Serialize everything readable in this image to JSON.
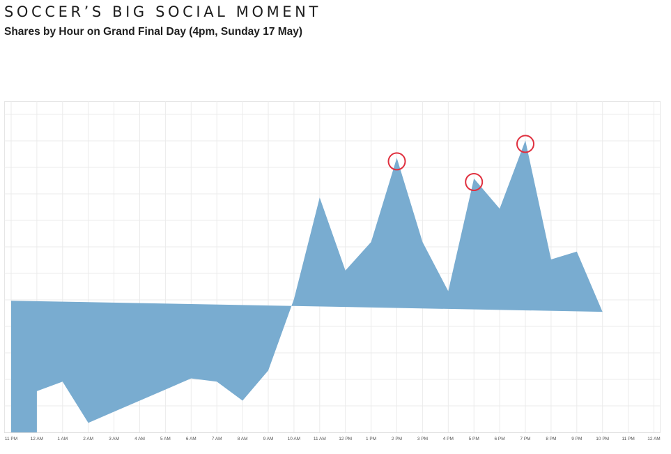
{
  "header": {
    "title": "SOCCER’S BIG SOCIAL MOMENT",
    "subtitle": "Shares by Hour on Grand Final Day (4pm, Sunday 17 May)"
  },
  "chart_data": {
    "type": "area",
    "title": "SOCCER’S BIG SOCIAL MOMENT",
    "subtitle": "Shares by Hour on Grand Final Day (4pm, Sunday 17 May)",
    "tick_labels": [
      "11 PM",
      "12 AM",
      "1 AM",
      "2 AM",
      "3 AM",
      "4 AM",
      "5 AM",
      "6 AM",
      "7 AM",
      "8 AM",
      "9 AM",
      "10 AM",
      "11 AM",
      "12 PM",
      "1 PM",
      "2 PM",
      "3 PM",
      "4 PM",
      "5 PM",
      "6 PM",
      "7 PM",
      "8 PM",
      "9 PM",
      "10 PM",
      "11 PM",
      "12 AM"
    ],
    "x": [
      "12 AM",
      "1 AM",
      "2 AM",
      "3 AM",
      "4 AM",
      "5 AM",
      "6 AM",
      "7 AM",
      "8 AM",
      "9 AM",
      "10 AM",
      "11 AM",
      "12 PM",
      "1 PM",
      "2 PM",
      "3 PM",
      "4 PM",
      "5 PM",
      "6 PM",
      "7 PM",
      "8 PM",
      "9 PM",
      "10 PM",
      "11 PM"
    ],
    "series": [
      {
        "values": [
          13,
          16,
          3,
          6.5,
          10,
          13.5,
          17,
          16,
          10,
          19.5,
          42,
          74,
          51,
          60,
          86.5,
          60,
          44.5,
          80,
          70.5,
          92,
          54.5,
          57,
          38,
          41.5
        ]
      }
    ],
    "highlighted": [
      "2 PM",
      "5 PM",
      "7 PM"
    ],
    "ylim": [
      0,
      100
    ],
    "grid": true,
    "legend": "none",
    "colors": {
      "area": "#79acd0",
      "highlight": "#e0303f",
      "grid": "#ebebeb",
      "tick": "#555555"
    }
  }
}
